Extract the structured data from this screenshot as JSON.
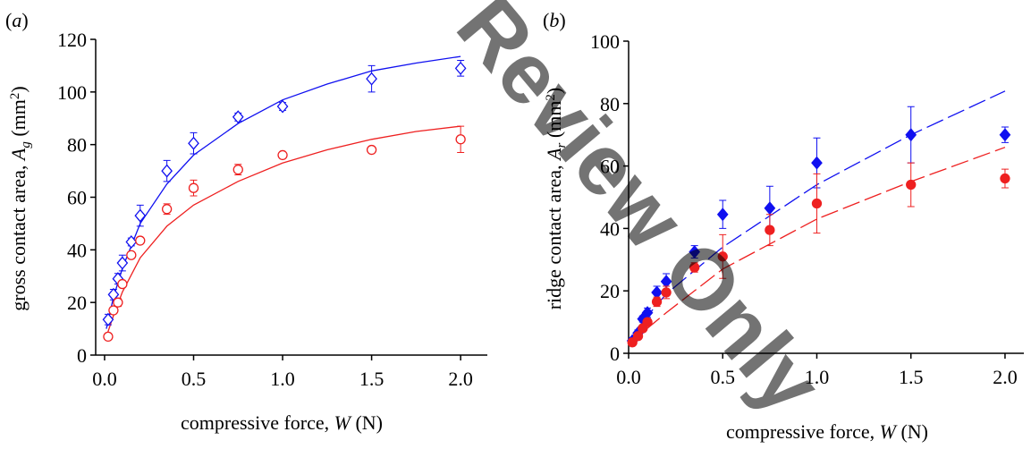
{
  "watermark": "Review Only",
  "chart_data": [
    {
      "type": "scatter",
      "panel_label": [
        "(",
        "a",
        ")"
      ],
      "xlabel": [
        "compressive force, ",
        "W",
        " (N)"
      ],
      "ylabel": [
        "gross contact area, ",
        "A",
        "g",
        " (mm",
        "2",
        ")"
      ],
      "xlim": [
        -0.05,
        2.15
      ],
      "xticks": [
        {
          "value": 0,
          "label": "0.0"
        },
        {
          "value": 0.5,
          "label": "0.5"
        },
        {
          "value": 1,
          "label": "1.0"
        },
        {
          "value": 1.5,
          "label": "1.5"
        },
        {
          "value": 2,
          "label": "2.0"
        }
      ],
      "ylim": [
        0,
        120
      ],
      "yticks": [
        0,
        20,
        40,
        60,
        80,
        100,
        120
      ],
      "x": [
        0.02,
        0.05,
        0.075,
        0.1,
        0.15,
        0.2,
        0.35,
        0.5,
        0.75,
        1.0,
        1.5,
        2.0
      ],
      "series": [
        {
          "color": "#1010f0",
          "marker": "diamond",
          "filled": false,
          "values": [
            13.5,
            23,
            29,
            35,
            43,
            53,
            70,
            80.5,
            90.5,
            94.5,
            105,
            109
          ],
          "errors": [
            2,
            2,
            2,
            3,
            1.5,
            4,
            4,
            4,
            1.5,
            1.5,
            5,
            3
          ]
        },
        {
          "color": "#ee2020",
          "marker": "circle",
          "filled": false,
          "values": [
            7,
            17,
            20,
            27,
            38,
            43.5,
            55.5,
            63.5,
            70.5,
            76,
            78,
            82
          ],
          "errors": [
            0.5,
            1,
            1.5,
            1,
            1,
            1,
            2,
            3,
            2,
            1,
            1,
            5
          ]
        }
      ],
      "fits": [
        {
          "color": "#1010f0",
          "dashed": false,
          "x": [
            0.01,
            0.05,
            0.1,
            0.2,
            0.35,
            0.5,
            0.75,
            1.0,
            1.25,
            1.5,
            1.75,
            2.0
          ],
          "values": [
            10,
            22,
            33,
            50,
            65,
            76,
            88,
            97,
            103,
            108,
            111,
            113.5
          ]
        },
        {
          "color": "#ee2020",
          "dashed": false,
          "x": [
            0.01,
            0.05,
            0.1,
            0.2,
            0.35,
            0.5,
            0.75,
            1.0,
            1.25,
            1.5,
            1.75,
            2.0
          ],
          "values": [
            7,
            15,
            24,
            37,
            49,
            57,
            66,
            73,
            78,
            82,
            85,
            87
          ]
        }
      ]
    },
    {
      "type": "scatter",
      "panel_label": [
        "(",
        "b",
        ")"
      ],
      "xlabel": [
        "compressive force, ",
        "W",
        " (N)"
      ],
      "ylabel": [
        "ridge contact area,  ",
        "A",
        "r",
        " (mm",
        "2",
        ")"
      ],
      "xlim": [
        0,
        2.1
      ],
      "xticks": [
        {
          "value": 0,
          "label": "0.0"
        },
        {
          "value": 0.5,
          "label": "0.5"
        },
        {
          "value": 1,
          "label": "1.0"
        },
        {
          "value": 1.5,
          "label": "1.5"
        },
        {
          "value": 2,
          "label": "2.0"
        }
      ],
      "ylim": [
        0,
        100
      ],
      "yticks": [
        0,
        20,
        40,
        60,
        80,
        100
      ],
      "x": [
        0.02,
        0.05,
        0.075,
        0.1,
        0.15,
        0.2,
        0.35,
        0.5,
        0.75,
        1.0,
        1.5,
        2.0
      ],
      "series": [
        {
          "color": "#1010f0",
          "marker": "diamond",
          "filled": true,
          "values": [
            4,
            6.5,
            11,
            13,
            19.5,
            23,
            32.5,
            44.5,
            46.5,
            61,
            70,
            70
          ],
          "errors": [
            1,
            1,
            1,
            1.5,
            2,
            2.5,
            2,
            4.5,
            7,
            8,
            9,
            2.5
          ]
        },
        {
          "color": "#ee2020",
          "marker": "circle",
          "filled": true,
          "values": [
            3.5,
            5.5,
            8,
            10,
            16.5,
            19.5,
            27.5,
            31,
            39.5,
            48,
            54,
            56
          ],
          "errors": [
            0.5,
            1,
            1,
            1,
            1.5,
            2,
            1.5,
            7,
            5,
            9.5,
            7,
            3
          ]
        }
      ],
      "fits": [
        {
          "color": "#1010f0",
          "dashed": true,
          "x": [
            0.01,
            0.1,
            0.2,
            0.5,
            1.0,
            1.5,
            2.0
          ],
          "values": [
            3,
            12,
            19,
            34,
            54,
            70,
            84
          ]
        },
        {
          "color": "#ee2020",
          "dashed": true,
          "x": [
            0.01,
            0.1,
            0.2,
            0.5,
            1.0,
            1.5,
            2.0
          ],
          "values": [
            2,
            8,
            13,
            27,
            43,
            55,
            66
          ]
        }
      ]
    }
  ]
}
